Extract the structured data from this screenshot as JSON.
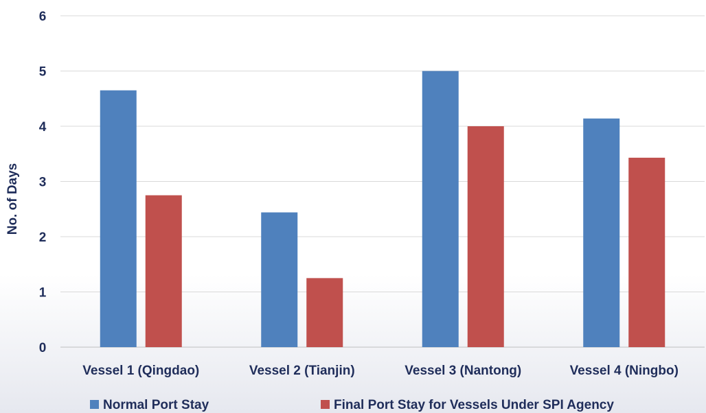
{
  "chart_data": {
    "type": "bar",
    "title": "",
    "xlabel": "",
    "ylabel": "No. of Days",
    "ylim": [
      0,
      6
    ],
    "y_ticks": [
      "0",
      "1",
      "2",
      "3",
      "4",
      "5",
      "6"
    ],
    "grid": true,
    "legend_position": "bottom",
    "categories": [
      "Vessel 1 (Qingdao)",
      "Vessel 2 (Tianjin)",
      "Vessel 3 (Nantong)",
      "Vessel 4 (Ningbo)"
    ],
    "series": [
      {
        "name": "Normal Port Stay",
        "values": [
          4.65,
          2.44,
          5.0,
          4.14
        ],
        "color": "#4f81bd"
      },
      {
        "name": "Final Port Stay for Vessels Under SPI Agency",
        "values": [
          2.75,
          1.25,
          4.0,
          3.43
        ],
        "color": "#c0504d"
      }
    ]
  },
  "colors": {
    "text": "#1f2d5a",
    "gridline": "#d9d9d9",
    "axis": "#bfbfbf"
  }
}
